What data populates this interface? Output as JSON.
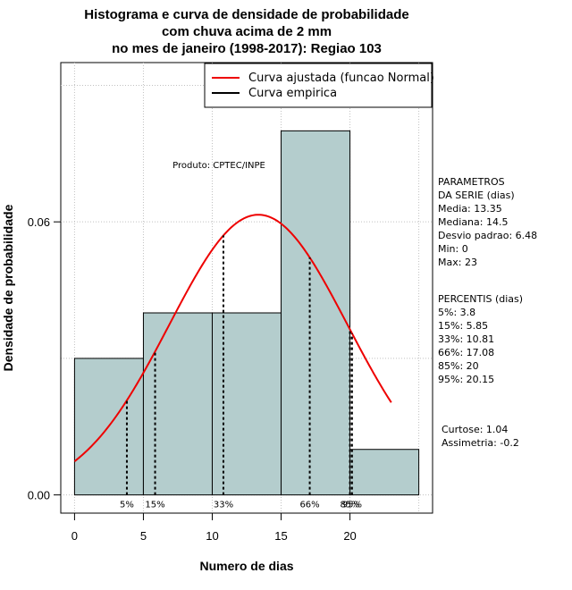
{
  "chart_data": {
    "type": "bar",
    "title_lines": [
      "Histograma e curva de densidade de probabilidade",
      "com chuva acima de 2 mm",
      "no mes de janeiro (1998-2017): Regiao 103"
    ],
    "xlabel": "Numero de dias",
    "ylabel": "Densidade de probabilidade",
    "xlim": [
      -1,
      26
    ],
    "ylim": [
      -0.004,
      0.095
    ],
    "x_ticks": [
      0,
      5,
      10,
      15,
      20
    ],
    "x_tick_labels": [
      "0",
      "5",
      "10",
      "15",
      "20"
    ],
    "y_ticks": [
      0,
      0.06
    ],
    "y_tick_labels": [
      "0.00",
      "0.06"
    ],
    "grid": true,
    "histogram": {
      "bins": [
        [
          0,
          5
        ],
        [
          5,
          10
        ],
        [
          10,
          15
        ],
        [
          15,
          20
        ],
        [
          20,
          25
        ]
      ],
      "values": [
        0.03,
        0.04,
        0.04,
        0.08,
        0.01
      ],
      "fill": "#b4cdcd"
    },
    "normal_curve": {
      "name": "Curva ajustada (funcao Normal)",
      "mean": 13.35,
      "sd": 6.48,
      "x_range": [
        0,
        23
      ],
      "color": "#ee0000"
    },
    "empirical_curve": {
      "name": "Curva empirica",
      "color": "#000000"
    },
    "percentile_lines": [
      {
        "x": 3.8,
        "label": "5%"
      },
      {
        "x": 5.85,
        "label": "15%"
      },
      {
        "x": 10.81,
        "label": "33%"
      },
      {
        "x": 17.08,
        "label": "66%"
      },
      {
        "x": 20,
        "label": "85%"
      },
      {
        "x": 20.15,
        "label": "95%"
      }
    ],
    "legend_position": "top-right",
    "annotation": "Produto: CPTEC/INPE"
  },
  "side_panel": {
    "parametros_lines": [
      "PARAMETROS",
      "DA SERIE (dias)",
      "  Media: 13.35",
      "  Mediana: 14.5",
      "  Desvio padrao: 6.48",
      "  Min: 0",
      "  Max: 23"
    ],
    "percentis_lines": [
      "PERCENTIS (dias)",
      "  5%: 3.8",
      "  15%: 5.85",
      "  33%: 10.81",
      "  66%: 17.08",
      "  85%: 20",
      "  95%: 20.15"
    ],
    "stats_lines": [
      "   Curtose: 1.04",
      "Assimetria: -0.2"
    ]
  }
}
